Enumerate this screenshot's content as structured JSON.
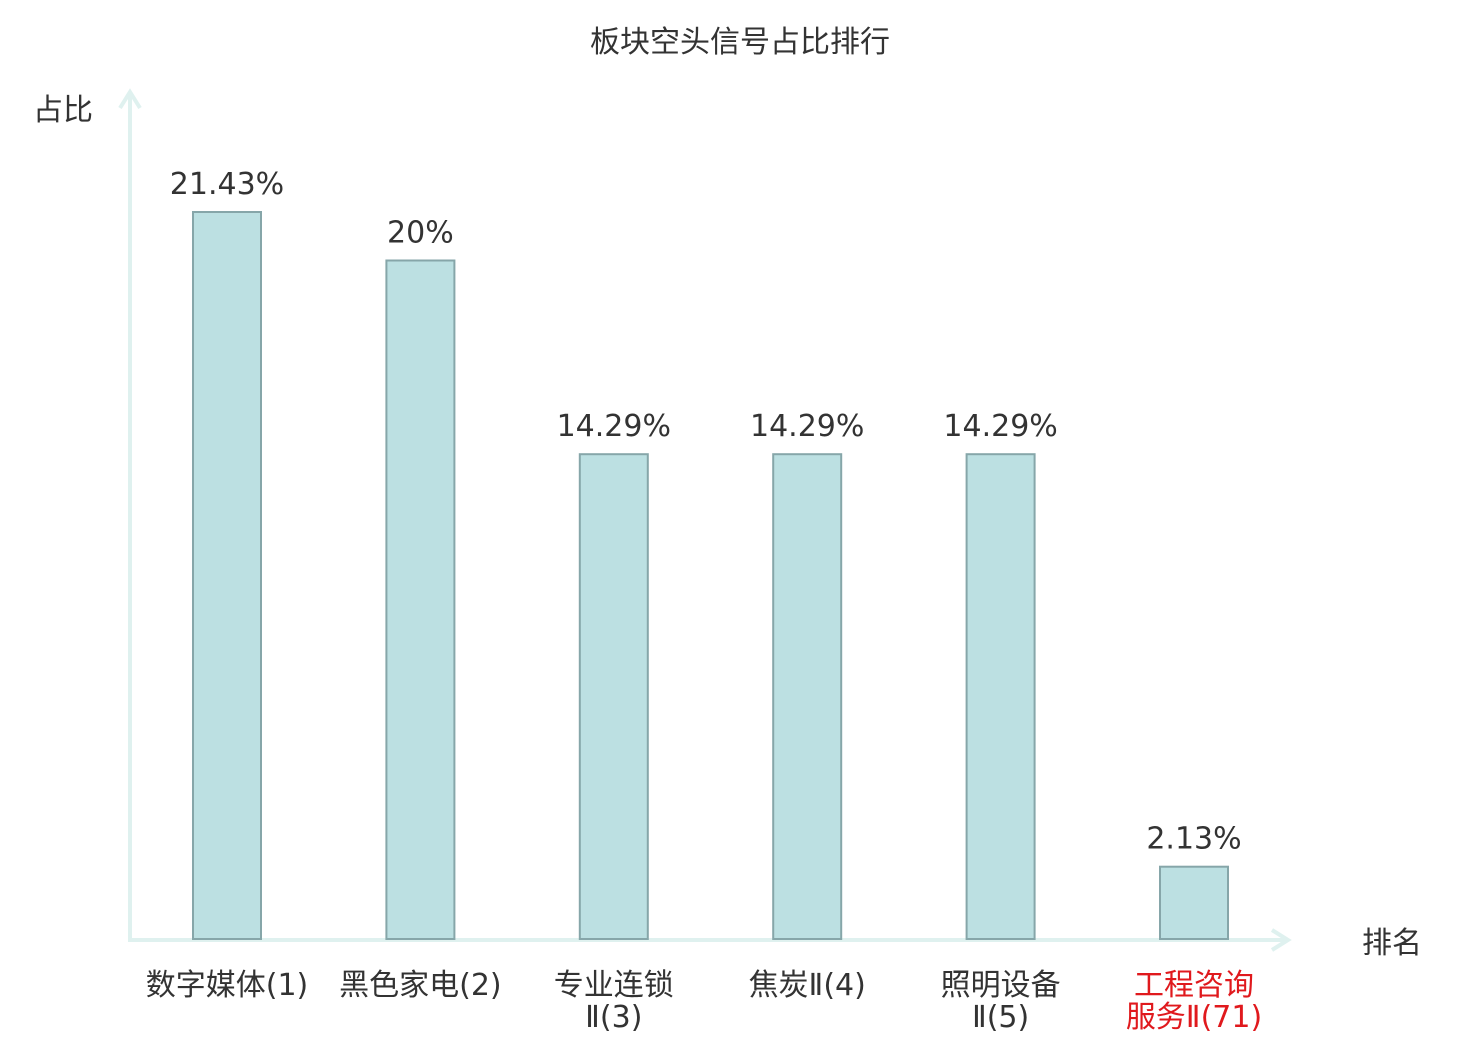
{
  "chart_data": {
    "type": "bar",
    "title": "板块空头信号占比排行",
    "ylabel": "占比",
    "xlabel": "排名",
    "ylim": [
      0,
      25
    ],
    "grid": false,
    "categories": [
      [
        "数字媒体(1)"
      ],
      [
        "黑色家电(2)"
      ],
      [
        "专业连锁",
        "Ⅱ(3)"
      ],
      [
        "焦炭Ⅱ(4)"
      ],
      [
        "照明设备",
        "Ⅱ(5)"
      ],
      [
        "工程咨询",
        "服务Ⅱ(71)"
      ]
    ],
    "values": [
      21.43,
      20,
      14.29,
      14.29,
      14.29,
      2.13
    ],
    "value_labels": [
      "21.43%",
      "20%",
      "14.29%",
      "14.29%",
      "14.29%",
      "2.13%"
    ],
    "highlight_index": 5
  },
  "colors": {
    "bar_fill": "#bce0e2",
    "bar_stroke": "#86a6a9",
    "axis": "#dff1ef",
    "text": "#333333",
    "highlight_text": "#e0191d"
  }
}
